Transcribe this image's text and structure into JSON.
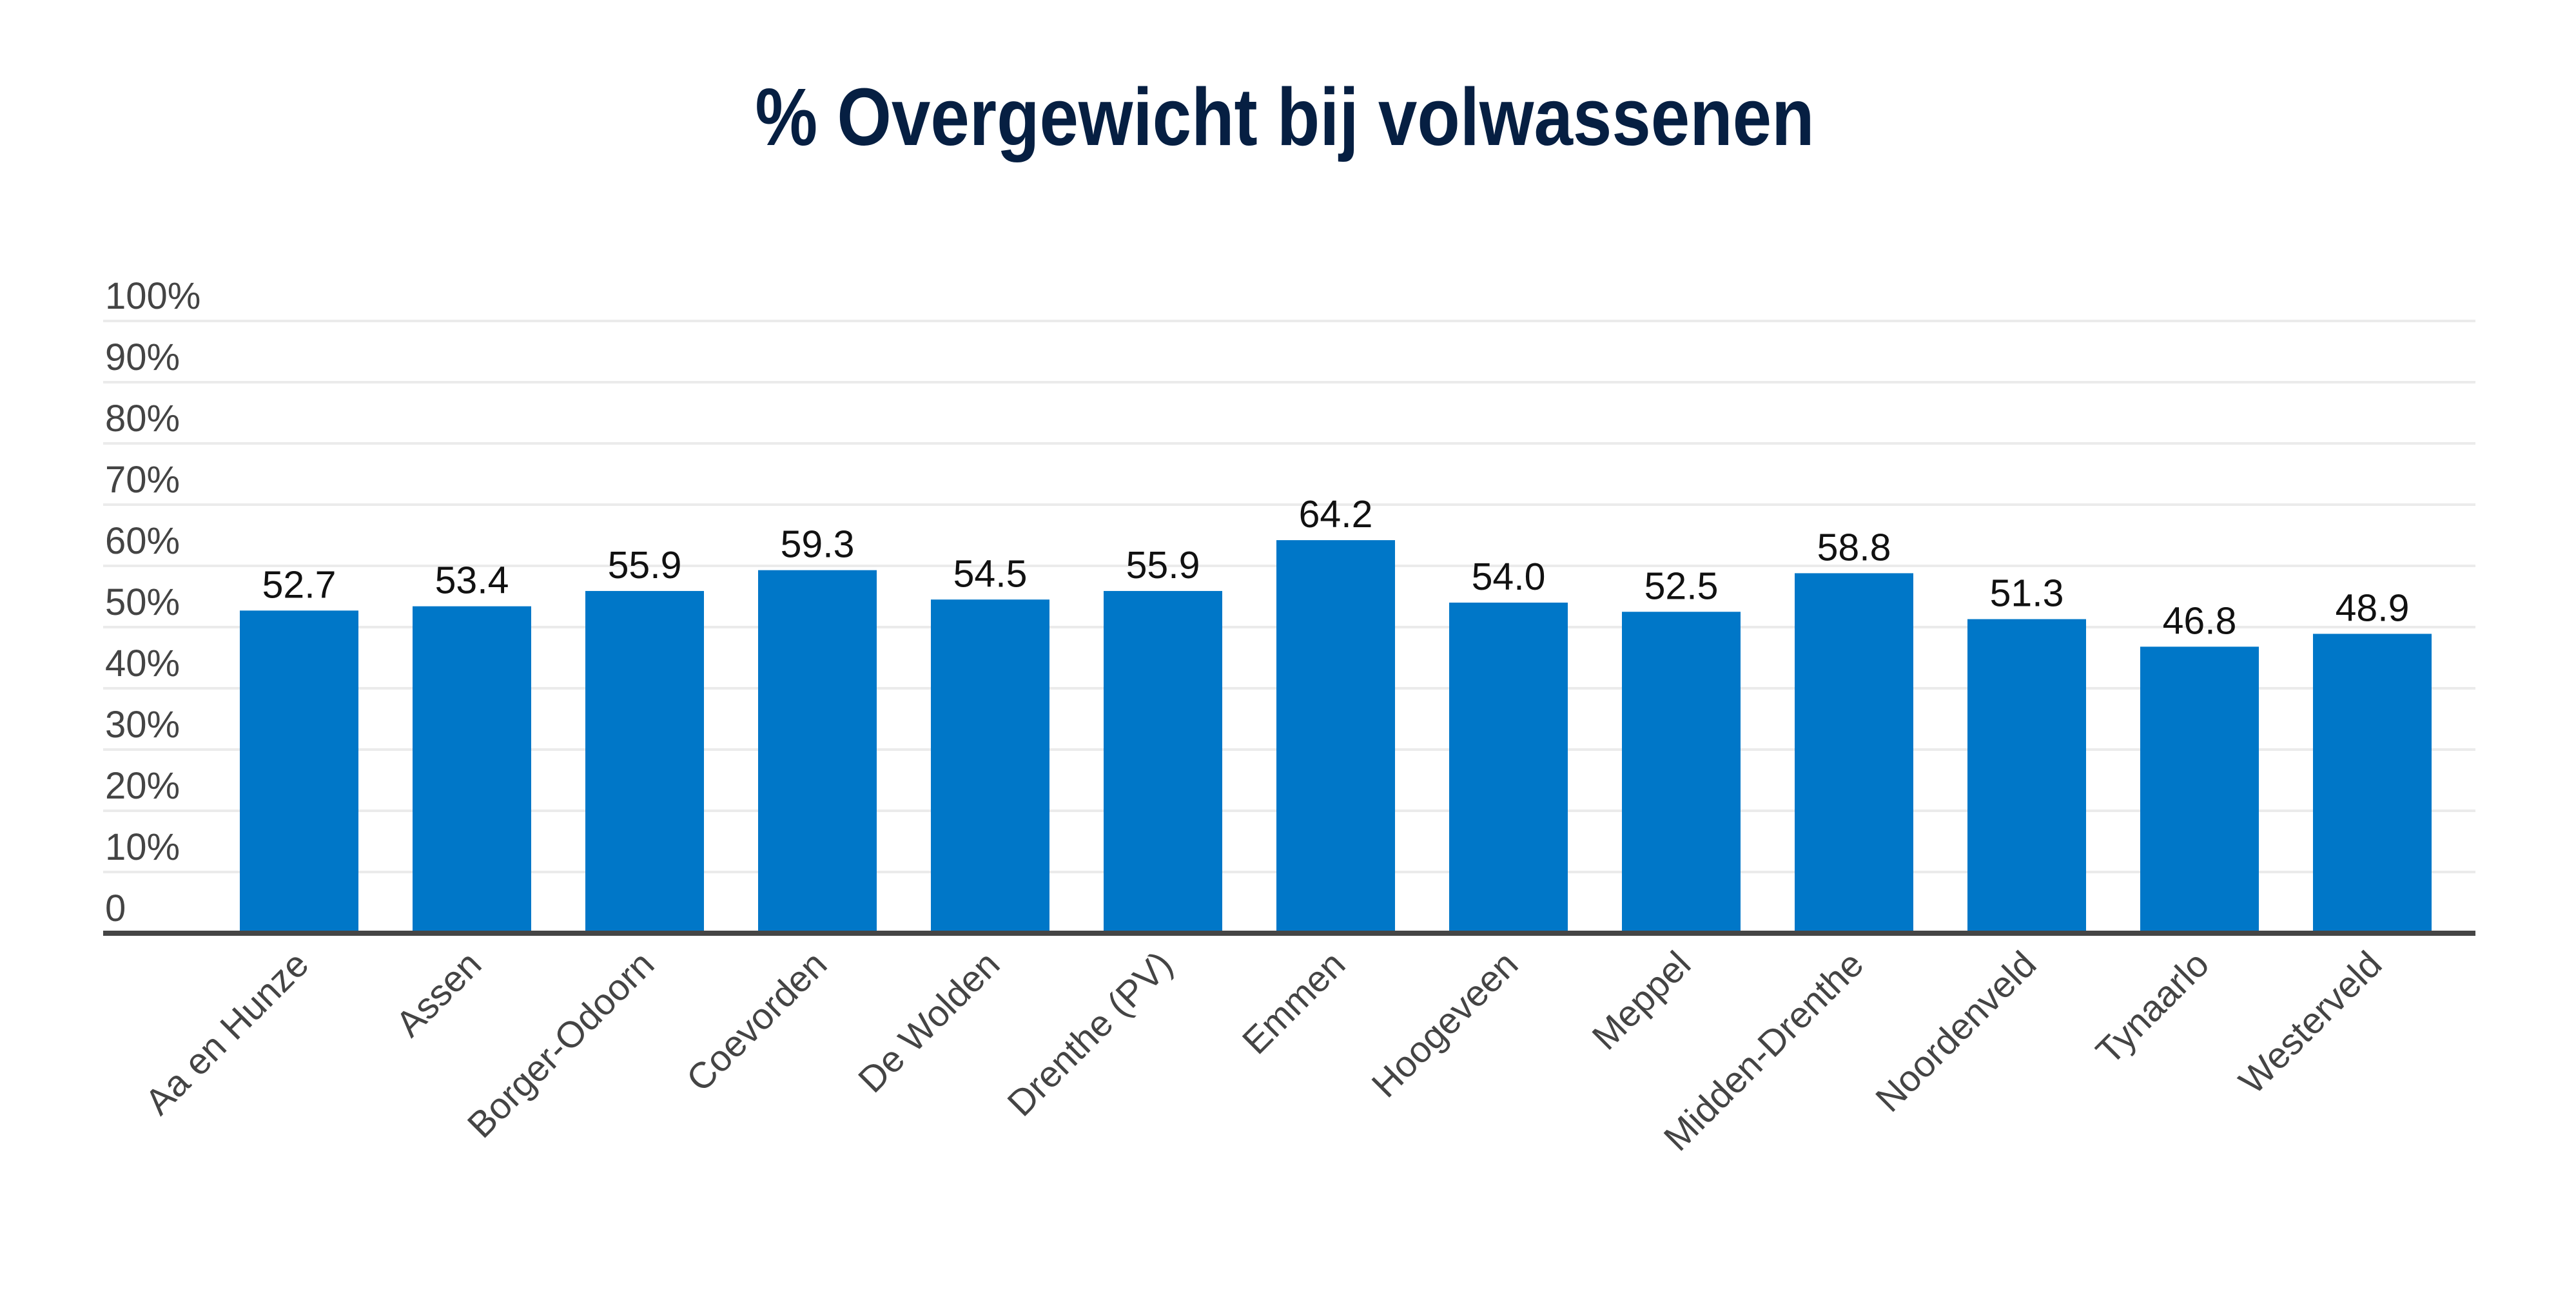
{
  "chart_data": {
    "type": "bar",
    "title": "% Overgewicht bij volwassenen",
    "xlabel": "",
    "ylabel": "",
    "categories": [
      "Aa en Hunze",
      "Assen",
      "Borger-Odoorn",
      "Coevorden",
      "De Wolden",
      "Drenthe (PV)",
      "Emmen",
      "Hoogeveen",
      "Meppel",
      "Midden-Drenthe",
      "Noordenveld",
      "Tynaarlo",
      "Westerveld"
    ],
    "values": [
      52.7,
      53.4,
      55.9,
      59.3,
      54.5,
      55.9,
      64.2,
      54.0,
      52.5,
      58.8,
      51.3,
      46.8,
      48.9
    ],
    "value_labels": [
      "52.7",
      "53.4",
      "55.9",
      "59.3",
      "54.5",
      "55.9",
      "64.2",
      "54.0",
      "52.5",
      "58.8",
      "51.3",
      "46.8",
      "48.9"
    ],
    "ylim": [
      0,
      100
    ],
    "yticks": [
      0,
      10,
      20,
      30,
      40,
      50,
      60,
      70,
      80,
      90,
      100
    ],
    "ytick_labels": [
      "0",
      "10%",
      "20%",
      "30%",
      "40%",
      "50%",
      "60%",
      "70%",
      "80%",
      "90%",
      "100%"
    ],
    "grid": true,
    "legend": "none",
    "xtick_rotation_deg": -45,
    "colors": {
      "bar": "#0077c8",
      "title": "#061f42",
      "axis": "#454545",
      "grid": "#ebebeb",
      "tick_text": "#444444",
      "value_text": "#111111"
    }
  }
}
